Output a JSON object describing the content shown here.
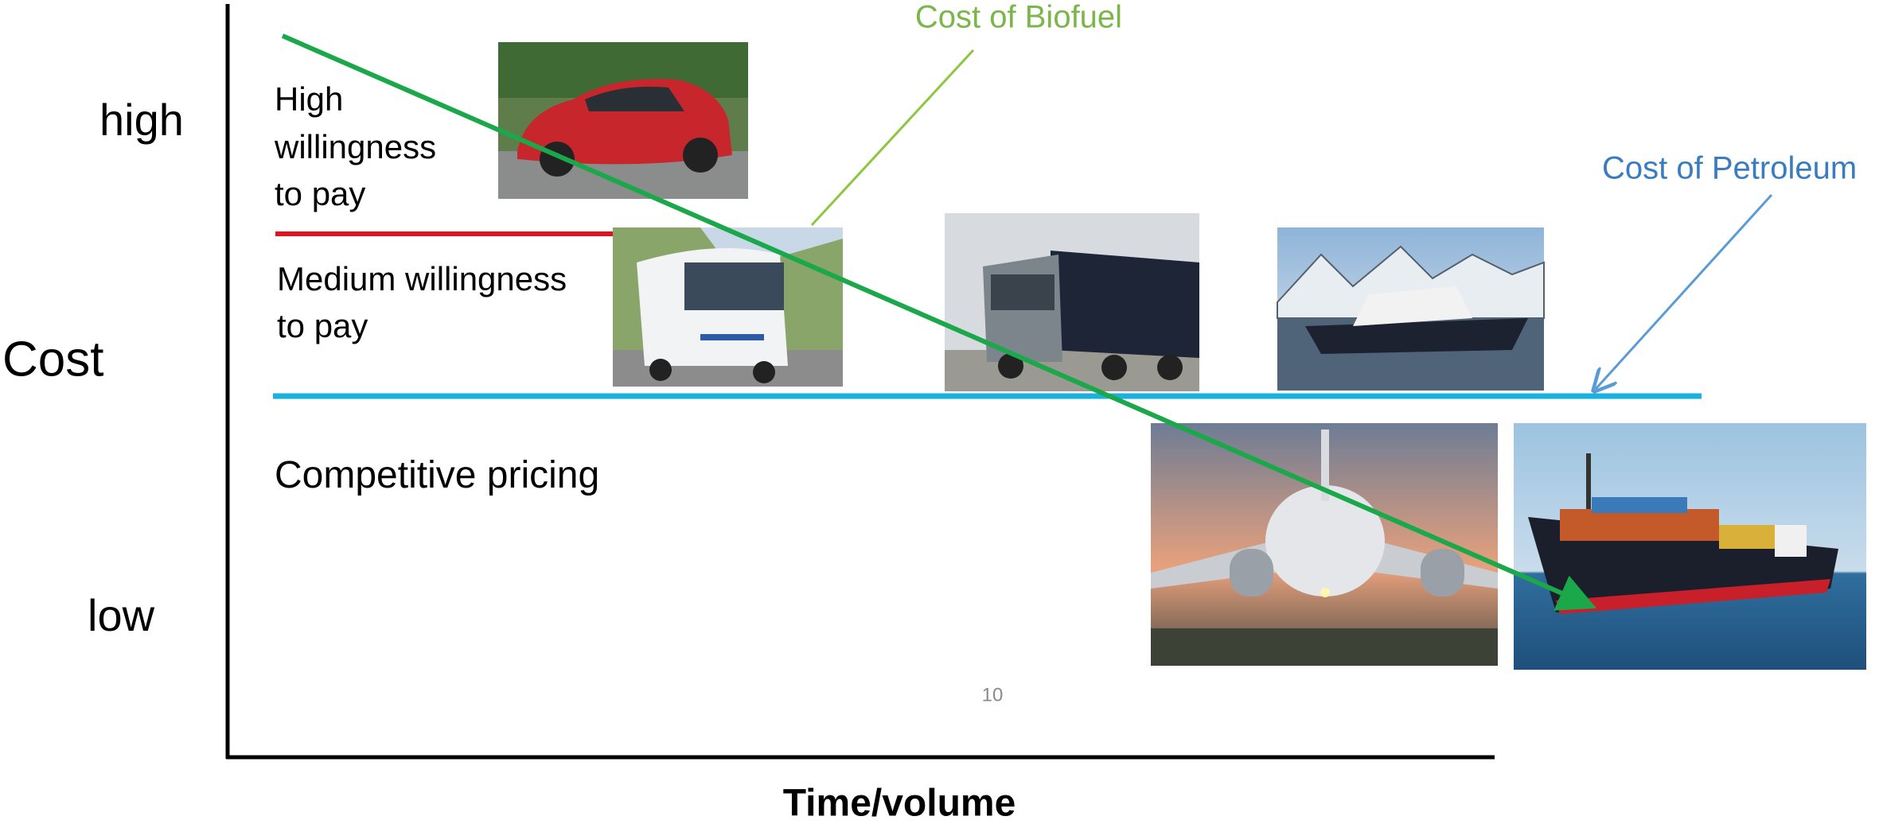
{
  "axes": {
    "y_label": "Cost",
    "y_high": "high",
    "y_low": "low",
    "x_label": "Time/volume"
  },
  "regions": [
    {
      "lines": [
        "High",
        "willingness",
        "to pay"
      ]
    },
    {
      "lines": [
        "Medium willingness",
        "to pay"
      ]
    },
    {
      "lines": [
        "Competitive pricing"
      ]
    }
  ],
  "annotations": {
    "biofuel": "Cost of Biofuel",
    "petroleum": "Cost of Petroleum"
  },
  "page_number": "10"
}
